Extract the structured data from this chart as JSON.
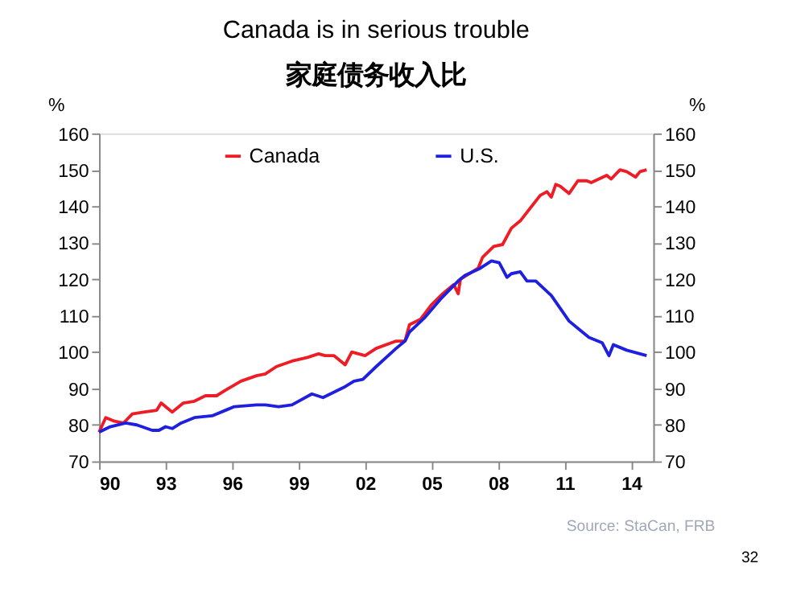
{
  "chart_data": {
    "type": "line",
    "title": "Canada is in serious trouble",
    "subtitle": "家庭债务收入比",
    "ylabel": "%",
    "y2label": "%",
    "xlim": [
      1990,
      2015
    ],
    "xticks": [
      {
        "value": 1990,
        "label": "90"
      },
      {
        "value": 1993,
        "label": "93"
      },
      {
        "value": 1996,
        "label": "96"
      },
      {
        "value": 1999,
        "label": "99"
      },
      {
        "value": 2002,
        "label": "02"
      },
      {
        "value": 2005,
        "label": "05"
      },
      {
        "value": 2008,
        "label": "08"
      },
      {
        "value": 2011,
        "label": "11"
      },
      {
        "value": 2014,
        "label": "14"
      }
    ],
    "ylim": [
      70,
      160
    ],
    "yticks": [
      70,
      80,
      90,
      100,
      110,
      120,
      130,
      140,
      150,
      160
    ],
    "y2lim": [
      70,
      160
    ],
    "y2ticks": [
      70,
      80,
      90,
      100,
      110,
      120,
      130,
      140,
      150,
      160
    ],
    "grid": false,
    "legend": "top",
    "marker": "none",
    "line_style": "solid",
    "series": [
      {
        "name": "Canada",
        "color": "#ee1c25",
        "x": [
          1990,
          1990.3,
          1990.7,
          1991.1,
          1991.5,
          1992,
          1992.6,
          1992.8,
          1993.3,
          1993.8,
          1994.3,
          1994.8,
          1995.3,
          1995.7,
          1996.4,
          1997.1,
          1997.5,
          1998,
          1998.7,
          1999.4,
          1999.9,
          2000.2,
          2000.6,
          2001.1,
          2001.4,
          2002,
          2002.5,
          2003.4,
          2003.8,
          2004,
          2004.5,
          2005,
          2005.5,
          2006,
          2006.2,
          2006.3,
          2007.1,
          2007.3,
          2007.8,
          2008.2,
          2008.6,
          2009,
          2009.9,
          2010.2,
          2010.4,
          2010.6,
          2010.8,
          2011.2,
          2011.6,
          2012,
          2012.2,
          2012.9,
          2013.1,
          2013.5,
          2013.8,
          2014.2,
          2014.4,
          2014.7
        ],
        "values": [
          78,
          82,
          81,
          80.5,
          83,
          83.5,
          84,
          86,
          83.5,
          86,
          86.5,
          88,
          88,
          89.5,
          92,
          93.5,
          94,
          96,
          97.5,
          98.5,
          99.5,
          99,
          99,
          96.5,
          100,
          99,
          101,
          103,
          103,
          107.5,
          109,
          113,
          116,
          118.5,
          116,
          120,
          123,
          126,
          129,
          129.5,
          134,
          136,
          143,
          144,
          142.5,
          146,
          145.5,
          143.5,
          147,
          147,
          146.5,
          148.5,
          147.5,
          150,
          149.5,
          148,
          149.5,
          150
        ]
      },
      {
        "name": "U.S.",
        "color": "#1f1fe0",
        "x": [
          1990,
          1990.5,
          1991.2,
          1991.7,
          1992.4,
          1992.7,
          1993,
          1993.3,
          1993.7,
          1994.3,
          1995.1,
          1995.7,
          1996.1,
          1997.1,
          1997.5,
          1998.1,
          1998.7,
          1999.6,
          2000.1,
          2001.1,
          2001.5,
          2001.9,
          2002.5,
          2003.4,
          2003.8,
          2004,
          2004.7,
          2005.4,
          2006.2,
          2006.5,
          2007.2,
          2007.7,
          2008.05,
          2008.4,
          2008.6,
          2009,
          2009.3,
          2009.7,
          2010.4,
          2011.2,
          2011.7,
          2012.1,
          2012.7,
          2013,
          2013.2,
          2013.8,
          2014.7
        ],
        "values": [
          78,
          79.5,
          80.5,
          80,
          78.5,
          78.5,
          79.5,
          79,
          80.5,
          82,
          82.5,
          84,
          85,
          85.5,
          85.5,
          85,
          85.5,
          88.5,
          87.5,
          90.5,
          92,
          92.5,
          96,
          101,
          103,
          105.5,
          109.5,
          114.5,
          119.5,
          121,
          123,
          125,
          124.5,
          120.5,
          121.5,
          122,
          119.5,
          119.5,
          115.5,
          108.5,
          106,
          104,
          102.5,
          99,
          102,
          100.5,
          99
        ]
      }
    ],
    "annotations": [
      "Source: StaCan, FRB",
      "32"
    ]
  }
}
